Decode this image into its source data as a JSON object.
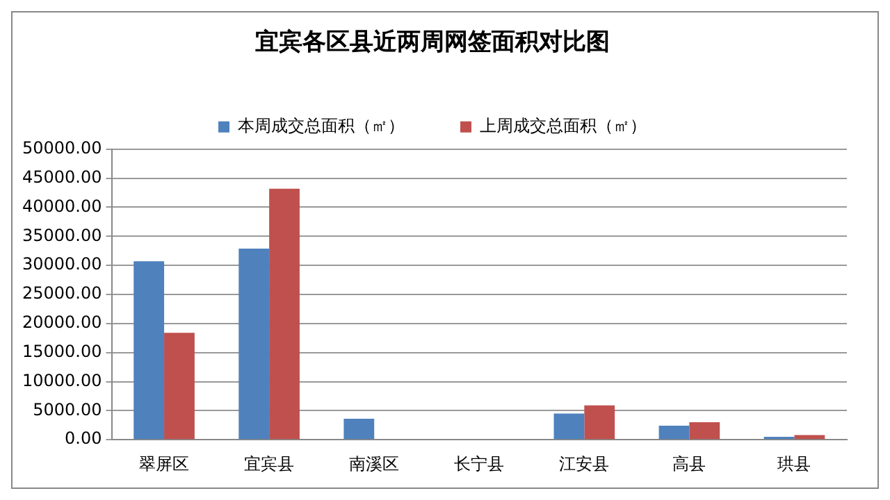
{
  "chart_data": {
    "type": "bar",
    "title": "宜宾各区县近两周网签面积对比图",
    "categories": [
      "翠屏区",
      "宜宾县",
      "南溪区",
      "长宁县",
      "江安县",
      "高县",
      "珙县"
    ],
    "series": [
      {
        "name": "本周成交总面积（㎡）",
        "color": "#4f81bd",
        "values": [
          30700,
          32900,
          3600,
          0,
          4500,
          2400,
          500
        ]
      },
      {
        "name": "上周成交总面积（㎡）",
        "color": "#c0504d",
        "values": [
          18400,
          43200,
          0,
          0,
          5900,
          3000,
          800
        ]
      }
    ],
    "ylim": [
      0,
      50000
    ],
    "yticks": [
      {
        "value": 0,
        "label": "0.00"
      },
      {
        "value": 5000,
        "label": "5000.00"
      },
      {
        "value": 10000,
        "label": "10000.00"
      },
      {
        "value": 15000,
        "label": "15000.00"
      },
      {
        "value": 20000,
        "label": "20000.00"
      },
      {
        "value": 25000,
        "label": "25000.00"
      },
      {
        "value": 30000,
        "label": "30000.00"
      },
      {
        "value": 35000,
        "label": "35000.00"
      },
      {
        "value": 40000,
        "label": "40000.00"
      },
      {
        "value": 45000,
        "label": "45000.00"
      },
      {
        "value": 50000,
        "label": "50000.00"
      }
    ],
    "grid": "y",
    "legend": "top"
  }
}
